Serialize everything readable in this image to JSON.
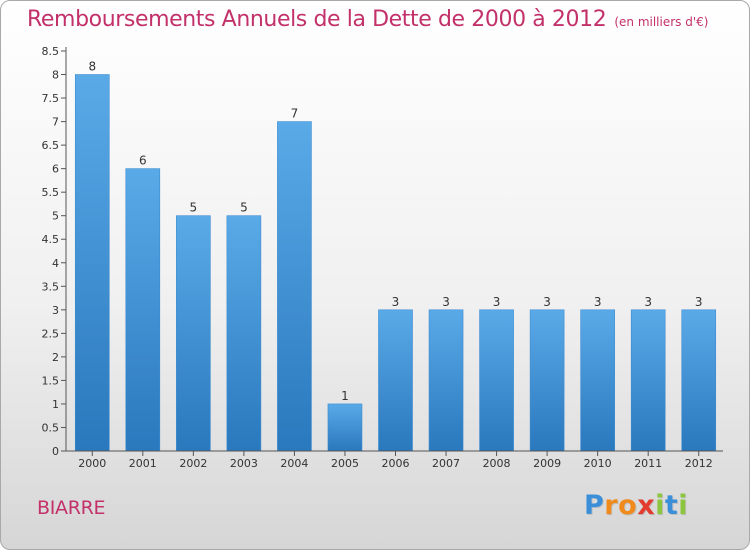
{
  "chart_data": {
    "type": "bar",
    "title": "Remboursements Annuels de la Dette de 2000 à 2012",
    "subtitle": "(en milliers d'€)",
    "categories": [
      "2000",
      "2001",
      "2002",
      "2003",
      "2004",
      "2005",
      "2006",
      "2007",
      "2008",
      "2009",
      "2010",
      "2011",
      "2012"
    ],
    "values": [
      8,
      6,
      5,
      5,
      7,
      1,
      3,
      3,
      3,
      3,
      3,
      3,
      3
    ],
    "value_labels": [
      "8",
      "6",
      "5",
      "5",
      "7",
      "1",
      "3",
      "3",
      "3",
      "3",
      "3",
      "3",
      "3"
    ],
    "y_ticks": [
      "0",
      "0.5",
      "1",
      "1.5",
      "2",
      "2.5",
      "3",
      "3.5",
      "4",
      "4.5",
      "5",
      "5.5",
      "6",
      "6.5",
      "7",
      "7.5",
      "8",
      "8.5"
    ],
    "ylim": [
      0,
      8.5
    ],
    "xlabel": "",
    "ylabel": "",
    "grid": false,
    "bar_color": "#4a9de0",
    "bar_color_dark": "#2f7fc4"
  },
  "footer": {
    "place": "BIARRE",
    "brand_letters": [
      "P",
      "r",
      "o",
      "x",
      "i",
      "t",
      "i"
    ],
    "brand_colors": [
      "#3a8fd8",
      "#f18a1c",
      "#f18a1c",
      "#e23c2f",
      "#8cc63f",
      "#3a8fd8",
      "#8cc63f"
    ]
  },
  "colors": {
    "title": "#c2316a",
    "axis": "#444444"
  }
}
